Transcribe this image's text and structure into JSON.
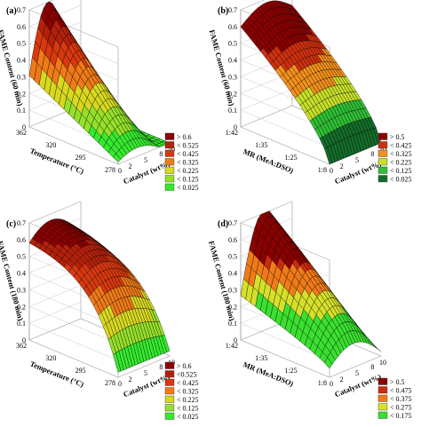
{
  "chart_data": [
    {
      "type": "surface3d",
      "panel_label": "(a)",
      "zlabel": "FAME Content (60 min)",
      "ylabel": "Temperature (°C)",
      "xlabel": "Catalyst (wt%)",
      "z_ticks": [
        "0",
        "0.1",
        "0.2",
        "0.3",
        "0.4",
        "0.5",
        "0.6",
        "0.7"
      ],
      "zlim": [
        0,
        0.7
      ],
      "y_ticks": [
        "278",
        "295",
        "320",
        "362"
      ],
      "x_ticks": [
        "0",
        "2",
        "5",
        "8",
        "10"
      ],
      "surface_shape": "dome_peak_high_temperature",
      "legend": {
        "labels": [
          "> 0.6",
          "< 0.525",
          "< 0.425",
          "< 0.325",
          "< 0.225",
          "< 0.125",
          "< 0.025"
        ],
        "colors": [
          "#8b0000",
          "#b5200b",
          "#d9380f",
          "#f07a18",
          "#d8d820",
          "#96e02a",
          "#35ea2e"
        ],
        "thresholds": [
          0.6,
          0.525,
          0.425,
          0.325,
          0.225,
          0.125,
          0.025
        ]
      }
    },
    {
      "type": "surface3d",
      "panel_label": "(b)",
      "zlabel": "FAME Content (60 min)",
      "ylabel": "MR (MeA:DSO)",
      "xlabel": "Catalyst (wt%)",
      "z_ticks": [
        "0",
        "0.1",
        "0.2",
        "0.3",
        "0.4",
        "0.5",
        "0.6",
        "0.7"
      ],
      "zlim": [
        0,
        0.7
      ],
      "y_ticks": [
        "1:8",
        "1:25",
        "1:35",
        "1:42"
      ],
      "x_ticks": [
        "0",
        "2",
        "5",
        "8",
        "10"
      ],
      "surface_shape": "rising_with_molar_ratio",
      "legend": {
        "labels": [
          "> 0.5",
          "< 0.425",
          "< 0.325",
          "< 0.225",
          "< 0.125",
          "< 0.025"
        ],
        "colors": [
          "#8b0000",
          "#d0300e",
          "#f2901b",
          "#c7e02a",
          "#2fbf35",
          "#136d2a"
        ],
        "thresholds": [
          0.5,
          0.425,
          0.325,
          0.225,
          0.125,
          0.025
        ]
      }
    },
    {
      "type": "surface3d",
      "panel_label": "(c)",
      "zlabel": "FAME Content (180 min)",
      "ylabel": "Temperature (°C)",
      "xlabel": "Catalyst (wt%)",
      "z_ticks": [
        "0",
        "0.1",
        "0.2",
        "0.3",
        "0.4",
        "0.5",
        "0.6",
        "0.7"
      ],
      "zlim": [
        0,
        0.7
      ],
      "y_ticks": [
        "278",
        "295",
        "320",
        "362"
      ],
      "x_ticks": [
        "0",
        "2",
        "5",
        "8",
        "10"
      ],
      "surface_shape": "saddle_valley_low_temperature",
      "legend": {
        "labels": [
          "> 0.6",
          "<0.525",
          "< 0.425",
          "< 0.325",
          "< 0.225",
          "< 0.125",
          "< 0.025"
        ],
        "colors": [
          "#8b0000",
          "#b5200b",
          "#d9380f",
          "#f07a18",
          "#d8d820",
          "#96e02a",
          "#35ea2e"
        ],
        "thresholds": [
          0.6,
          0.525,
          0.425,
          0.325,
          0.225,
          0.125,
          0.025
        ]
      }
    },
    {
      "type": "surface3d",
      "panel_label": "(d)",
      "zlabel": "FAME Content (180 min)",
      "ylabel": "MR (MeA:DSO)",
      "xlabel": "Catalyst (wt%)",
      "z_ticks": [
        "0",
        "0.1",
        "0.2",
        "0.3",
        "0.4",
        "0.5",
        "0.6",
        "0.7"
      ],
      "zlim": [
        0,
        0.7
      ],
      "y_ticks": [
        "1:8",
        "1:25",
        "1:35",
        "1:42"
      ],
      "x_ticks": [
        "0",
        "2",
        "5",
        "8",
        "10"
      ],
      "surface_shape": "ridge_mid_catalyst_rising_molar_ratio",
      "legend": {
        "labels": [
          "> 0.5",
          "< 0.475",
          "< 0.375",
          "< 0.275",
          "< 0.175"
        ],
        "colors": [
          "#8b0000",
          "#cc2a0d",
          "#f07a18",
          "#d6e02a",
          "#3ae02f"
        ],
        "thresholds": [
          0.5,
          0.475,
          0.375,
          0.275,
          0.175
        ]
      }
    }
  ]
}
